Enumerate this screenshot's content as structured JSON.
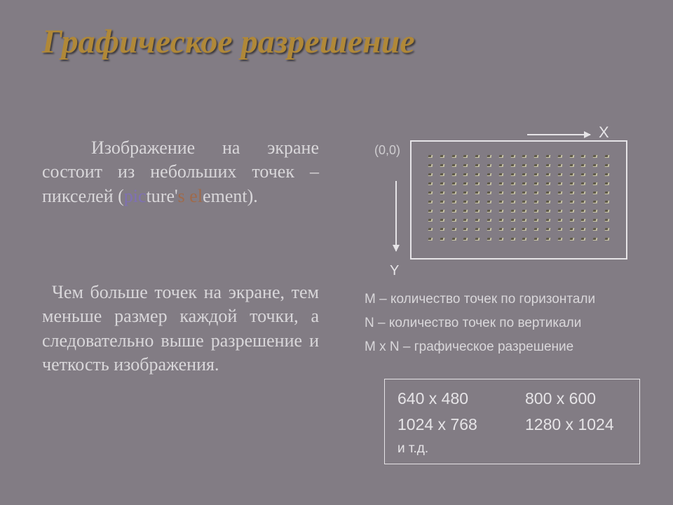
{
  "title": "Графическое разрешение",
  "paragraph1": {
    "pre": "Изображение на экране состоит из небольших точек – пикселей (",
    "pic": "pic",
    "mid1": "ture'",
    "s": "s",
    "spc": " ",
    "el": "el",
    "post": "ement)."
  },
  "paragraph2": "Чем больше точек на экране, тем меньше размер каждой точки, а следовательно выше разрешение и четкость изображения.",
  "diagram": {
    "origin": "(0,0)",
    "x_axis": "X",
    "y_axis": "Y",
    "grid_cols": 16,
    "grid_rows": 10
  },
  "legend": {
    "m": "M – количество точек по горизонтали",
    "n": "N – количество точек по вертикали",
    "mn": "M x N – графическое разрешение"
  },
  "resolutions": {
    "r1a": "640 x 480",
    "r1b": "800 х 600",
    "r2a": "1024 x 768",
    "r2b": "1280 x 1024",
    "etc": "и т.д."
  },
  "colors": {
    "background": "#827c84",
    "title": "#b08838",
    "body_text": "#d9d7da",
    "accent1": "#7f70b5",
    "accent2": "#a06a4a",
    "border": "#e6e4e7"
  }
}
